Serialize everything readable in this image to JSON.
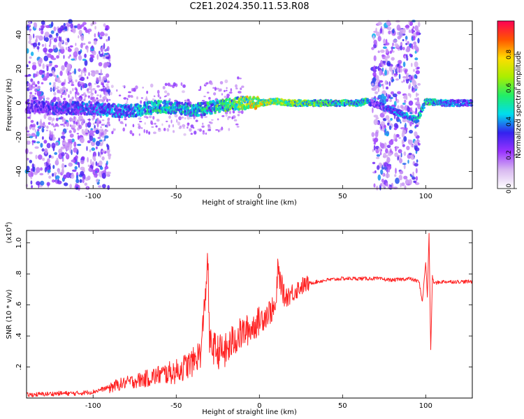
{
  "title": "C2E1.2024.350.11.53.R08",
  "chart_data": [
    {
      "type": "heatmap",
      "xlabel": "Height of straight line (km)",
      "ylabel": "Frequency (Hz)",
      "xlim": [
        -140,
        128
      ],
      "ylim": [
        -50,
        48
      ],
      "xticks": [
        -100,
        -50,
        0,
        50,
        100
      ],
      "yticks": [
        -40,
        -20,
        0,
        20,
        40
      ],
      "grid": false,
      "colorbar": {
        "label": "Normalized spectral amplitude",
        "ticks": [
          "0.0",
          "0.2",
          "0.4",
          "0.6",
          "0.8"
        ],
        "range": [
          0,
          1
        ],
        "colormap": [
          "#ffffff",
          "#d8b8f0",
          "#9933ff",
          "#3322ee",
          "#00ddee",
          "#22ee66",
          "#aaee00",
          "#ffdd00",
          "#ff5500",
          "#ff0055"
        ]
      },
      "features": {
        "ridge": {
          "x": [
            -140,
            -120,
            -100,
            -80,
            -60,
            -40,
            -30,
            -20,
            -10,
            0,
            10,
            20,
            40,
            60,
            64,
            68,
            95,
            100,
            110,
            128
          ],
          "y": [
            -2,
            -3,
            -3,
            -5,
            -2,
            -4,
            -3,
            -1,
            0,
            0,
            1,
            0,
            0,
            0,
            1,
            0,
            -10,
            1,
            0,
            0
          ],
          "amplitude": [
            0.3,
            0.35,
            0.4,
            0.45,
            0.55,
            0.5,
            0.55,
            0.6,
            0.75,
            0.8,
            0.75,
            0.7,
            0.6,
            0.55,
            0.6,
            0.3,
            0.5,
            0.6,
            0.45,
            0.4
          ]
        },
        "noise_bands_x": [
          [
            -140,
            -90
          ],
          [
            68,
            96
          ]
        ]
      }
    },
    {
      "type": "line",
      "xlabel": "Height of straight line (km)",
      "ylabel": "SNR (10 * v/v)",
      "yscale_label": "(x10",
      "yscale_exp": "4",
      "yscale_close": ")",
      "xlim": [
        -140,
        128
      ],
      "ylim": [
        0,
        1.08
      ],
      "xticks": [
        -100,
        -50,
        0,
        50,
        100
      ],
      "yticks": [
        0.2,
        0.4,
        0.6,
        0.8,
        1.0
      ],
      "color": "#ff2222",
      "series": [
        {
          "x": [
            -140,
            -120,
            -110,
            -100,
            -90,
            -80,
            -70,
            -60,
            -50,
            -40,
            -35,
            -31,
            -30,
            -25,
            -20,
            -15,
            -10,
            -5,
            0,
            5,
            10,
            11,
            15,
            20,
            25,
            30,
            40,
            50,
            60,
            70,
            80,
            90,
            96,
            98,
            100,
            101,
            102,
            103,
            104,
            105,
            110,
            120,
            128
          ],
          "y": [
            0.02,
            0.03,
            0.03,
            0.04,
            0.07,
            0.1,
            0.12,
            0.15,
            0.17,
            0.23,
            0.3,
            0.9,
            0.35,
            0.3,
            0.3,
            0.38,
            0.42,
            0.45,
            0.5,
            0.55,
            0.58,
            0.83,
            0.65,
            0.68,
            0.72,
            0.74,
            0.76,
            0.77,
            0.77,
            0.77,
            0.76,
            0.77,
            0.75,
            0.62,
            0.88,
            0.65,
            1.07,
            0.3,
            0.78,
            0.74,
            0.75,
            0.75,
            0.75
          ]
        }
      ]
    }
  ]
}
